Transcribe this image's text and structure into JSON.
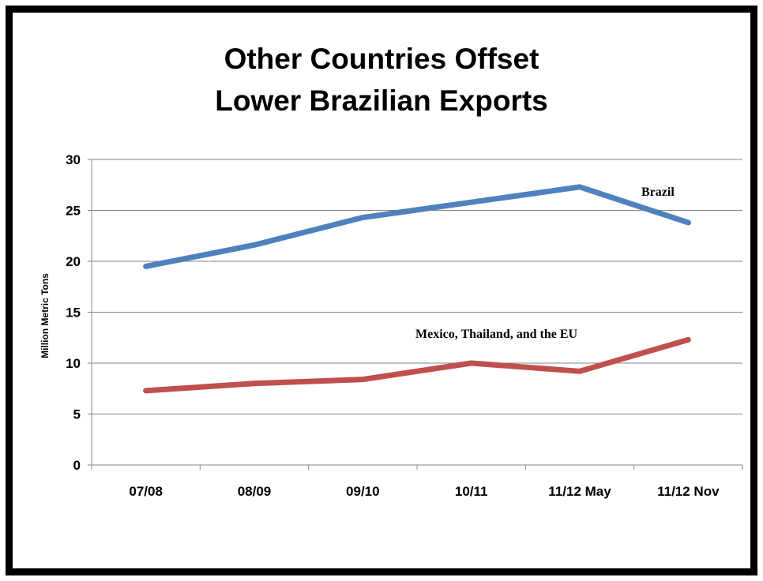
{
  "chart_data": {
    "type": "line",
    "title_lines": [
      "Other Countries Offset",
      "Lower Brazilian Exports"
    ],
    "xlabel": "",
    "ylabel": "Million Metric Tons",
    "categories": [
      "07/08",
      "08/09",
      "09/10",
      "10/11",
      "11/12 May",
      "11/12 Nov"
    ],
    "ylim": [
      0,
      30
    ],
    "yticks": [
      0,
      5,
      10,
      15,
      20,
      25,
      30
    ],
    "grid": true,
    "series": [
      {
        "name": "Brazil",
        "color": "#4F81BD",
        "values": [
          19.5,
          21.6,
          24.3,
          25.8,
          27.3,
          23.8
        ]
      },
      {
        "name": "Mexico, Thailand, and the EU",
        "color": "#C0504D",
        "values": [
          7.3,
          8.0,
          8.4,
          10.0,
          9.2,
          12.3
        ]
      }
    ]
  }
}
